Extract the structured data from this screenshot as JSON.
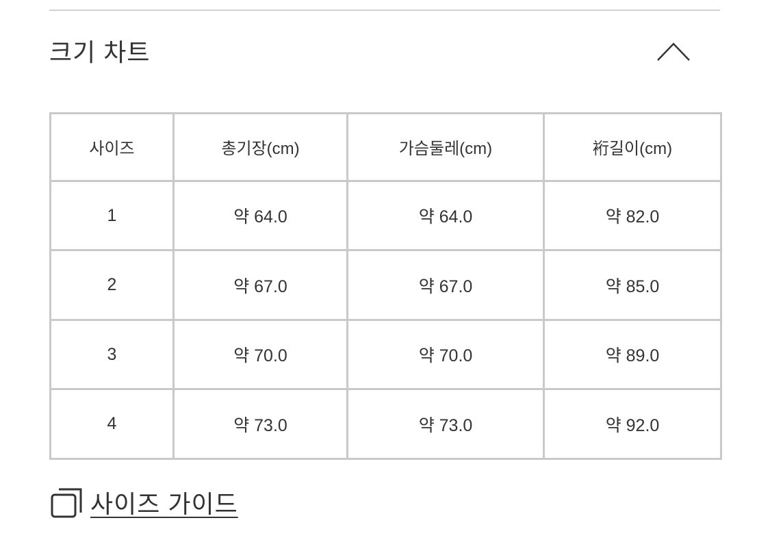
{
  "section": {
    "title": "크기 차트",
    "toggle_icon": "chevron-up-icon"
  },
  "size_table": {
    "headers": [
      "사이즈",
      "총기장(cm)",
      "가슴둘레(cm)",
      "裄길이(cm)"
    ],
    "rows": [
      [
        "1",
        "약 64.0",
        "약 64.0",
        "약 82.0"
      ],
      [
        "2",
        "약 67.0",
        "약 67.0",
        "약 85.0"
      ],
      [
        "3",
        "약 70.0",
        "약 70.0",
        "약 89.0"
      ],
      [
        "4",
        "약 73.0",
        "약 73.0",
        "약 92.0"
      ]
    ]
  },
  "guide_link": {
    "label": "사이즈 가이드",
    "icon": "external-window-icon"
  }
}
